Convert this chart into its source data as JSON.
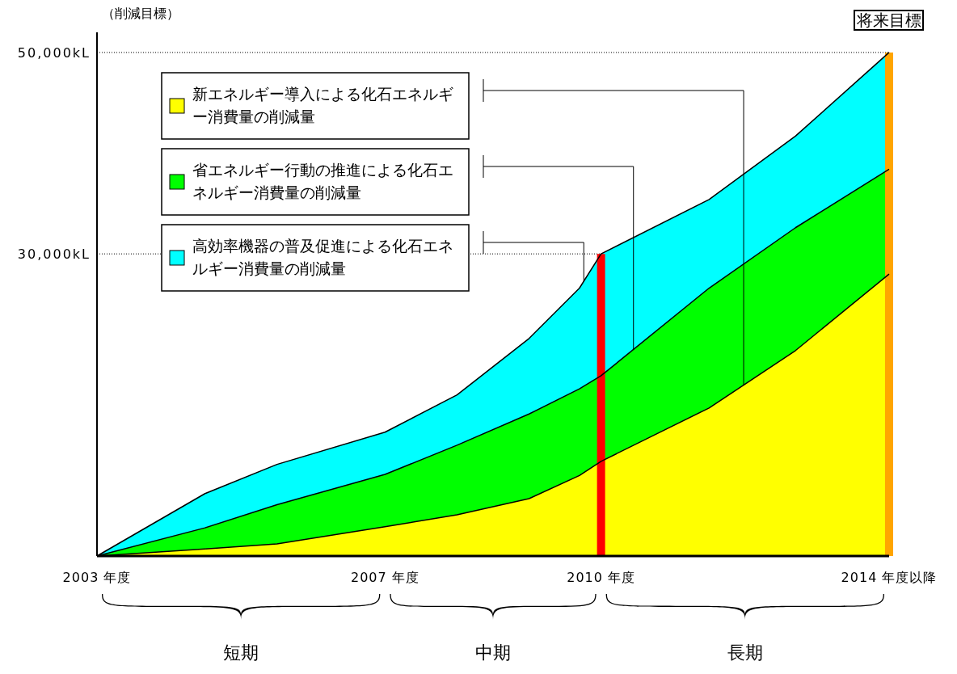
{
  "chart_data": {
    "type": "area",
    "stacked": true,
    "ylabel": "（削減目標）",
    "x": [
      2003,
      2004.5,
      2005.5,
      2007,
      2008,
      2009,
      2009.7,
      2010,
      2011.5,
      2012.7,
      2014
    ],
    "xlim": [
      2003,
      2014
    ],
    "xticks": [
      {
        "value": 2003,
        "label": "2003 年度"
      },
      {
        "value": 2007,
        "label": "2007 年度"
      },
      {
        "value": 2010,
        "label": "2010 年度"
      },
      {
        "value": 2014,
        "label": "2014 年度以降"
      }
    ],
    "ylim": [
      0,
      52000
    ],
    "yticks": [
      {
        "value": 30000,
        "label": "30,000kL"
      },
      {
        "value": 50000,
        "label": "50,000kL"
      }
    ],
    "grid": "y",
    "legend": "top left",
    "series": [
      {
        "name": "新エネルギー導入による化石エネルギー消費量の削減量",
        "color": "#ffff00",
        "values": [
          0,
          700,
          1200,
          2900,
          4100,
          5700,
          8000,
          9400,
          14700,
          20400,
          28000
        ]
      },
      {
        "name": "省エネルギー行動の推進による化石エネルギー消費量の削減量",
        "color": "#00ff00",
        "values": [
          0,
          2100,
          3900,
          5200,
          6900,
          8400,
          8600,
          8500,
          11900,
          12200,
          10400
        ]
      },
      {
        "name": "高効率機器の普及促進による化石エネルギー消費量の削減量",
        "color": "#00ffff",
        "values": [
          0,
          3400,
          4000,
          4200,
          5000,
          7500,
          10000,
          12100,
          8800,
          9100,
          11600
        ]
      }
    ],
    "ref_lines": [
      {
        "axis": "x",
        "value": 2010,
        "color": "#ff0000"
      },
      {
        "axis": "x",
        "value": 2014,
        "color": "#ffa500",
        "label": "将来目標"
      }
    ],
    "annotations": [
      "短期",
      "中期",
      "長期"
    ]
  }
}
